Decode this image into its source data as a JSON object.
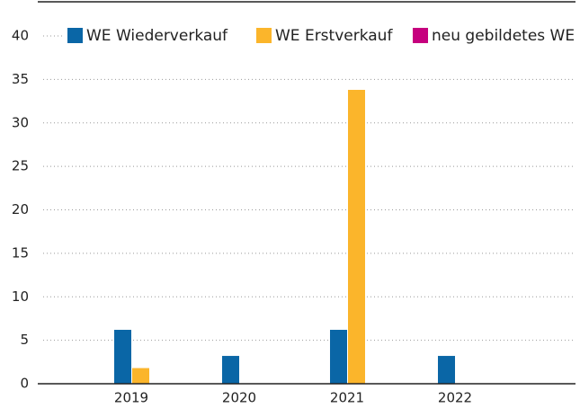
{
  "chart_data": {
    "type": "bar",
    "categories": [
      "2019",
      "2020",
      "2021",
      "2022"
    ],
    "series": [
      {
        "name": "WE Wiederverkauf",
        "color": "#0a66a6",
        "values": [
          6.2,
          3.2,
          6.2,
          3.2
        ]
      },
      {
        "name": "WE Erstverkauf",
        "color": "#fbb52b",
        "values": [
          1.8,
          0,
          33.8,
          0
        ]
      },
      {
        "name": "neu gebildetes WE",
        "color": "#c6007e",
        "values": [
          0,
          0,
          0,
          0
        ]
      }
    ],
    "ylim": [
      0,
      40
    ],
    "yticks": [
      0,
      5,
      10,
      15,
      20,
      25,
      30,
      35,
      40
    ],
    "grid": true,
    "legend": "top"
  }
}
